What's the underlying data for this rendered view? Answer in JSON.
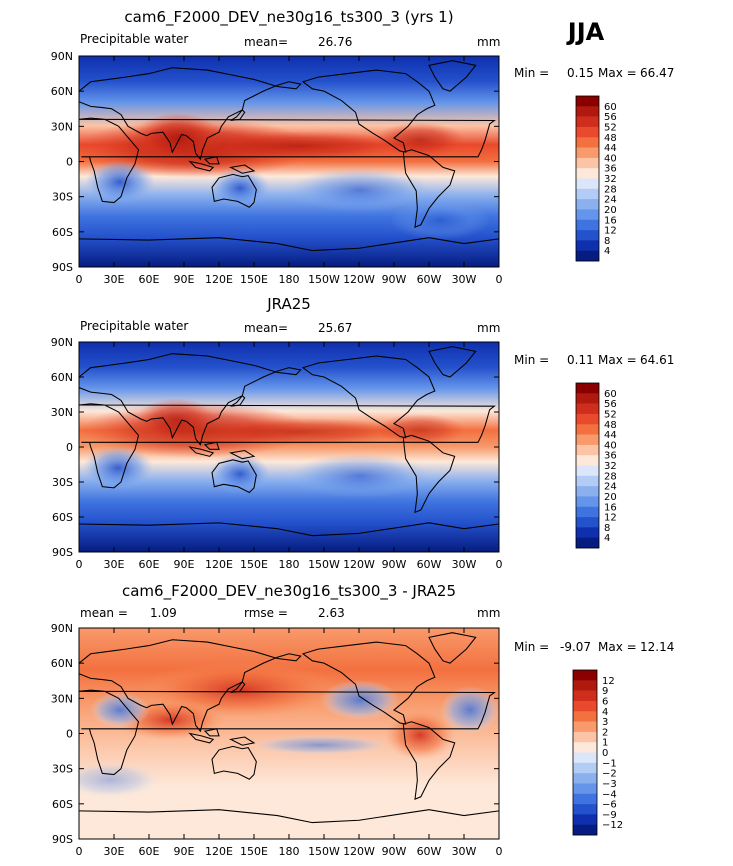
{
  "season": "JJA",
  "chart_data": [
    {
      "type": "heatmap",
      "id": "model",
      "title": "cam6_F2000_DEV_ne30g16_ts300_3 (yrs 1)",
      "variable": "Precipitable water",
      "mean_label": "mean=",
      "mean": "26.76",
      "units": "mm",
      "min_label": "Min =",
      "min": "0.15",
      "max_label": "Max =",
      "max": "66.47",
      "x_ticks": [
        "0",
        "30E",
        "60E",
        "90E",
        "120E",
        "150E",
        "180",
        "150W",
        "120W",
        "90W",
        "60W",
        "30W",
        "0"
      ],
      "y_ticks": [
        "90N",
        "60N",
        "30N",
        "0",
        "30S",
        "60S",
        "90S"
      ],
      "colorbar_levels": [
        "60",
        "56",
        "52",
        "48",
        "44",
        "40",
        "36",
        "32",
        "28",
        "24",
        "20",
        "16",
        "12",
        "8",
        "4"
      ],
      "colorbar_colors": [
        "#8a0000",
        "#b01a0e",
        "#cf2e1c",
        "#e9492c",
        "#f3703f",
        "#f89a6b",
        "#fcc4a6",
        "#fde8d9",
        "#dbe6fa",
        "#b3ccf5",
        "#8bb0ee",
        "#6495ea",
        "#3f74e0",
        "#2451cc",
        "#0e2fae",
        "#061c80"
      ],
      "ylim": [
        -90,
        90
      ],
      "xlim": [
        0,
        360
      ]
    },
    {
      "type": "heatmap",
      "id": "obs",
      "title": "JRA25",
      "variable": "Precipitable water",
      "mean_label": "mean=",
      "mean": "25.67",
      "units": "mm",
      "min_label": "Min =",
      "min": "0.11",
      "max_label": "Max =",
      "max": "64.61",
      "x_ticks": [
        "0",
        "30E",
        "60E",
        "90E",
        "120E",
        "150E",
        "180",
        "150W",
        "120W",
        "90W",
        "60W",
        "30W",
        "0"
      ],
      "y_ticks": [
        "90N",
        "60N",
        "30N",
        "0",
        "30S",
        "60S",
        "90S"
      ],
      "colorbar_levels": [
        "60",
        "56",
        "52",
        "48",
        "44",
        "40",
        "36",
        "32",
        "28",
        "24",
        "20",
        "16",
        "12",
        "8",
        "4"
      ],
      "colorbar_colors": [
        "#8a0000",
        "#b01a0e",
        "#cf2e1c",
        "#e9492c",
        "#f3703f",
        "#f89a6b",
        "#fcc4a6",
        "#fde8d9",
        "#dbe6fa",
        "#b3ccf5",
        "#8bb0ee",
        "#6495ea",
        "#3f74e0",
        "#2451cc",
        "#0e2fae",
        "#061c80"
      ],
      "ylim": [
        -90,
        90
      ],
      "xlim": [
        0,
        360
      ]
    },
    {
      "type": "heatmap",
      "id": "diff",
      "title": "cam6_F2000_DEV_ne30g16_ts300_3 - JRA25",
      "mean_label": "mean =",
      "mean": "1.09",
      "rmse_label": "rmse =",
      "rmse": "2.63",
      "units": "mm",
      "min_label": "Min =",
      "min": "-9.07",
      "max_label": "Max =",
      "max": "12.14",
      "x_ticks": [
        "0",
        "30E",
        "60E",
        "90E",
        "120E",
        "150E",
        "180",
        "150W",
        "120W",
        "90W",
        "60W",
        "30W",
        "0"
      ],
      "y_ticks": [
        "90N",
        "60N",
        "30N",
        "0",
        "30S",
        "60S",
        "90S"
      ],
      "colorbar_levels": [
        "12",
        "9",
        "6",
        "4",
        "3",
        "2",
        "1",
        "0",
        "−1",
        "−2",
        "−3",
        "−4",
        "−6",
        "−9",
        "−12"
      ],
      "colorbar_colors": [
        "#8a0000",
        "#b01a0e",
        "#cf2e1c",
        "#e9492c",
        "#f3703f",
        "#f89a6b",
        "#fcc4a6",
        "#fde8d9",
        "#dbe6fa",
        "#b3ccf5",
        "#8bb0ee",
        "#6495ea",
        "#3f74e0",
        "#2451cc",
        "#0e2fae",
        "#061c80"
      ],
      "ylim": [
        -90,
        90
      ],
      "xlim": [
        0,
        360
      ]
    }
  ]
}
